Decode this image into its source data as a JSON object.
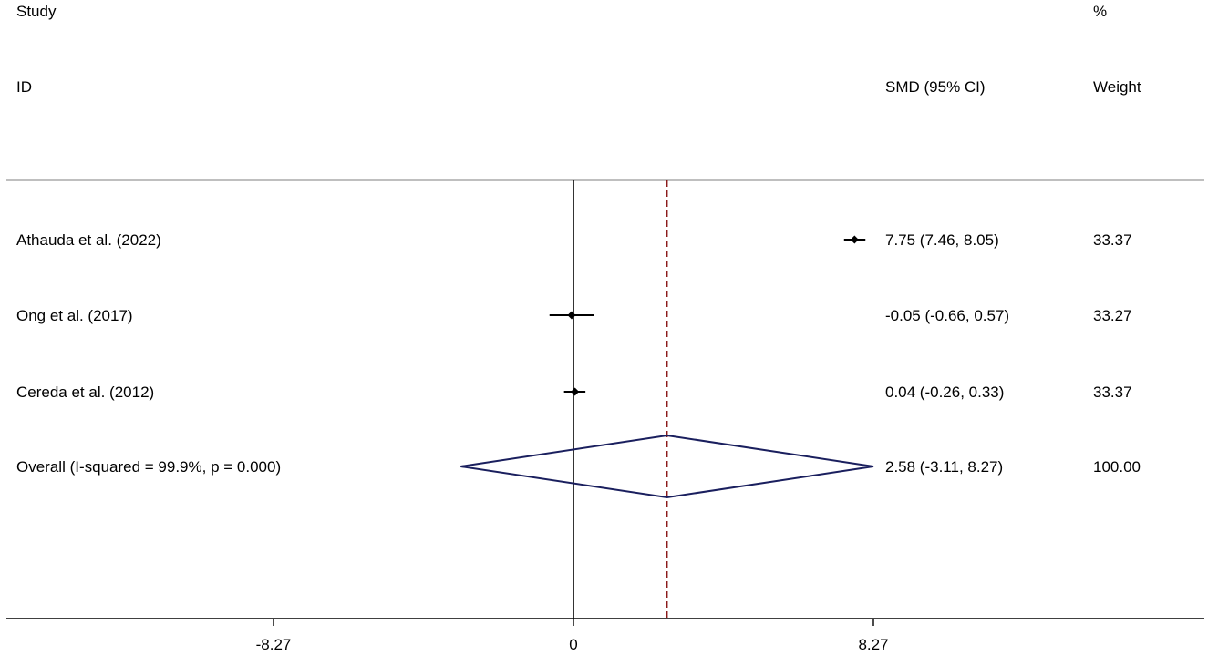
{
  "chart_data": {
    "type": "forest",
    "headers": {
      "study_top": "Study",
      "study_bottom": "ID",
      "estimate": "SMD (95% CI)",
      "weight_top": "%",
      "weight_bottom": "Weight"
    },
    "studies": [
      {
        "label": "Athauda et al. (2022)",
        "estimate": 7.75,
        "ci_low": 7.46,
        "ci_high": 8.05,
        "estimate_text": "7.75 (7.46, 8.05)",
        "weight": "33.37"
      },
      {
        "label": "Ong et al. (2017)",
        "estimate": -0.05,
        "ci_low": -0.66,
        "ci_high": 0.57,
        "estimate_text": "-0.05 (-0.66, 0.57)",
        "weight": "33.27"
      },
      {
        "label": "Cereda et al. (2012)",
        "estimate": 0.04,
        "ci_low": -0.26,
        "ci_high": 0.33,
        "estimate_text": "0.04 (-0.26, 0.33)",
        "weight": "33.37"
      }
    ],
    "overall": {
      "label": "Overall  (I-squared = 99.9%, p = 0.000)",
      "estimate": 2.58,
      "ci_low": -3.11,
      "ci_high": 8.27,
      "estimate_text": "2.58 (-3.11, 8.27)",
      "weight": "100.00"
    },
    "x_ticks": [
      {
        "value": -8.27,
        "label": "-8.27"
      },
      {
        "value": 0,
        "label": "0"
      },
      {
        "value": 8.27,
        "label": "8.27"
      }
    ],
    "xlim": [
      -15.6,
      17.4
    ],
    "null_line": 0,
    "colors": {
      "diamond": "#1a1f5e",
      "overall_line": "#8b1a1a",
      "markers": "#000000",
      "rule": "#999999"
    }
  }
}
